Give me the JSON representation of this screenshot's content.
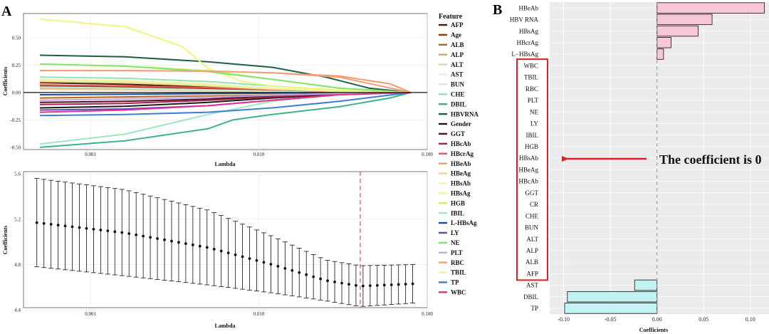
{
  "colors": {
    "panel_bg": "#ebebeb",
    "bar_pos": "#f9c6d8",
    "bar_neg": "#c2f3f3",
    "highlight": "#e02020",
    "cv_line": "#e05050"
  },
  "chart_data": [
    {
      "id": "A-top",
      "panel_label": "A",
      "type": "line",
      "xlabel": "Lambda",
      "ylabel": "Coefficients",
      "xscale": "log",
      "xlim": [
        0.0004,
        0.1
      ],
      "ylim": [
        -0.52,
        0.72
      ],
      "xticks": [
        0.001,
        0.01,
        0.1
      ],
      "xtick_labels": [
        "0.001",
        "0.010",
        "0.100"
      ],
      "yticks": [
        -0.5,
        -0.25,
        0,
        0.25,
        0.5
      ],
      "ytick_labels": [
        "-0.50",
        "-0.25",
        "0.00",
        "0.25",
        "0.50"
      ],
      "grid": true,
      "legend_title": "Feature",
      "legend_position": "right",
      "lambda_max": 0.1,
      "series": [
        {
          "name": "AFP",
          "color": "#4a1a08",
          "x": [
            0.0005,
            0.0016,
            0.005,
            0.012,
            0.03,
            0.1
          ],
          "y": [
            0.09,
            0.075,
            0.05,
            0.03,
            0.01,
            0
          ]
        },
        {
          "name": "Age",
          "color": "#8b3a0f",
          "x": [
            0.0005,
            0.0016,
            0.005,
            0.012,
            0.03,
            0.1
          ],
          "y": [
            0.06,
            0.05,
            0.035,
            0.02,
            0.005,
            0
          ]
        },
        {
          "name": "ALB",
          "color": "#b5651d",
          "x": [
            0.0005,
            0.0016,
            0.005,
            0.012,
            0.03,
            0.1
          ],
          "y": [
            -0.05,
            -0.04,
            -0.03,
            -0.015,
            -0.005,
            0
          ]
        },
        {
          "name": "ALP",
          "color": "#d2a56b",
          "x": [
            0.0005,
            0.0016,
            0.005,
            0.012,
            0.03,
            0.1
          ],
          "y": [
            0.04,
            0.035,
            0.02,
            0.01,
            0.003,
            0
          ]
        },
        {
          "name": "ALT",
          "color": "#e8d0a0",
          "x": [
            0.0005,
            0.0016,
            0.005,
            0.012,
            0.03,
            0.1
          ],
          "y": [
            0.03,
            0.025,
            0.015,
            0.008,
            0.002,
            0
          ]
        },
        {
          "name": "AST",
          "color": "#f2ecd6",
          "x": [
            0.0005,
            0.0016,
            0.005,
            0.012,
            0.03,
            0.1
          ],
          "y": [
            -0.03,
            -0.025,
            -0.02,
            -0.01,
            -0.003,
            0
          ]
        },
        {
          "name": "BUN",
          "color": "#c6eee0",
          "x": [
            0.0005,
            0.0016,
            0.005,
            0.012,
            0.03,
            0.1
          ],
          "y": [
            0.05,
            0.04,
            0.025,
            0.012,
            0.004,
            0
          ]
        },
        {
          "name": "CHE",
          "color": "#8fe3b8",
          "x": [
            0.0005,
            0.0016,
            0.005,
            0.012,
            0.03,
            0.1
          ],
          "y": [
            0.14,
            0.13,
            0.1,
            0.06,
            0.02,
            0
          ]
        },
        {
          "name": "DBIL",
          "color": "#3cb38a",
          "x": [
            0.0005,
            0.0016,
            0.005,
            0.007,
            0.012,
            0.03,
            0.06,
            0.1
          ],
          "y": [
            -0.5,
            -0.44,
            -0.33,
            -0.25,
            -0.2,
            -0.13,
            -0.05,
            0
          ]
        },
        {
          "name": "HBVRNA",
          "color": "#1e5e45",
          "x": [
            0.0005,
            0.0016,
            0.005,
            0.012,
            0.025,
            0.045,
            0.1
          ],
          "y": [
            0.34,
            0.325,
            0.28,
            0.23,
            0.14,
            0.04,
            0
          ]
        },
        {
          "name": "Gender",
          "color": "#1a1a1a",
          "x": [
            0.0005,
            0.0016,
            0.005,
            0.012,
            0.03,
            0.1
          ],
          "y": [
            -0.14,
            -0.125,
            -0.09,
            -0.05,
            -0.015,
            0
          ]
        },
        {
          "name": "GGT",
          "color": "#5c0a20",
          "x": [
            0.0005,
            0.0016,
            0.005,
            0.012,
            0.03,
            0.1
          ],
          "y": [
            -0.09,
            -0.08,
            -0.06,
            -0.03,
            -0.01,
            0
          ]
        },
        {
          "name": "HBcAb",
          "color": "#a0254a",
          "x": [
            0.0005,
            0.0016,
            0.005,
            0.012,
            0.03,
            0.1
          ],
          "y": [
            -0.11,
            -0.1,
            -0.07,
            -0.04,
            -0.012,
            0
          ]
        },
        {
          "name": "HBcrAg",
          "color": "#e05a5a",
          "x": [
            0.0005,
            0.0016,
            0.005,
            0.012,
            0.03,
            0.1
          ],
          "y": [
            0.07,
            0.06,
            0.045,
            0.025,
            0.008,
            0
          ]
        },
        {
          "name": "HBeAb",
          "color": "#f09a6a",
          "x": [
            0.0005,
            0.0016,
            0.005,
            0.012,
            0.03,
            0.06,
            0.1
          ],
          "y": [
            0.2,
            0.2,
            0.195,
            0.18,
            0.15,
            0.08,
            0
          ]
        },
        {
          "name": "HBeAg",
          "color": "#f5d28c",
          "x": [
            0.0005,
            0.0016,
            0.005,
            0.012,
            0.03,
            0.1
          ],
          "y": [
            0.1,
            0.09,
            0.06,
            0.03,
            0.01,
            0
          ]
        },
        {
          "name": "HBsAb",
          "color": "#f6f0b0",
          "x": [
            0.0005,
            0.0016,
            0.005,
            0.012,
            0.03,
            0.1
          ],
          "y": [
            0.12,
            0.11,
            0.08,
            0.04,
            0.012,
            0
          ]
        },
        {
          "name": "HBsAg",
          "color": "#f2f57a",
          "x": [
            0.0005,
            0.0016,
            0.0035,
            0.005,
            0.008,
            0.012,
            0.03,
            0.1
          ],
          "y": [
            0.67,
            0.6,
            0.42,
            0.22,
            0.1,
            0.06,
            0.02,
            0
          ]
        },
        {
          "name": "HGB",
          "color": "#c8f070",
          "x": [
            0.0005,
            0.0016,
            0.005,
            0.012,
            0.03,
            0.1
          ],
          "y": [
            0.26,
            0.24,
            0.2,
            0.12,
            0.04,
            0
          ]
        },
        {
          "name": "IBIL",
          "color": "#9fe6bd",
          "x": [
            0.0005,
            0.0016,
            0.005,
            0.012,
            0.03,
            0.1
          ],
          "y": [
            -0.47,
            -0.38,
            -0.2,
            -0.08,
            -0.02,
            0
          ]
        },
        {
          "name": "L-HBsAg",
          "color": "#1d4f9e",
          "x": [
            0.0005,
            0.0016,
            0.005,
            0.012,
            0.03,
            0.1
          ],
          "y": [
            -0.02,
            -0.015,
            -0.01,
            -0.005,
            -0.002,
            0
          ]
        },
        {
          "name": "LY",
          "color": "#5a4ac0",
          "x": [
            0.0005,
            0.0016,
            0.005,
            0.012,
            0.03,
            0.1
          ],
          "y": [
            -0.16,
            -0.15,
            -0.12,
            -0.07,
            -0.02,
            0
          ]
        },
        {
          "name": "NE",
          "color": "#7de86a",
          "x": [
            0.0005,
            0.0016,
            0.005,
            0.012,
            0.03,
            0.1
          ],
          "y": [
            0.26,
            0.24,
            0.19,
            0.12,
            0.04,
            0
          ]
        },
        {
          "name": "PLT",
          "color": "#c0a8e6",
          "x": [
            0.0005,
            0.0016,
            0.005,
            0.012,
            0.03,
            0.1
          ],
          "y": [
            -0.07,
            -0.06,
            -0.045,
            -0.025,
            -0.008,
            0
          ]
        },
        {
          "name": "RBC",
          "color": "#f2a078",
          "x": [
            0.0005,
            0.0016,
            0.005,
            0.012,
            0.03,
            0.1
          ],
          "y": [
            0.2,
            0.2,
            0.195,
            0.18,
            0.14,
            0
          ]
        },
        {
          "name": "TBIL",
          "color": "#e6f5a0",
          "x": [
            0.0005,
            0.0016,
            0.005,
            0.012,
            0.03,
            0.1
          ],
          "y": [
            0.11,
            0.1,
            0.07,
            0.035,
            0.01,
            0
          ]
        },
        {
          "name": "TP",
          "color": "#3a7fd5",
          "x": [
            0.0005,
            0.0016,
            0.005,
            0.012,
            0.03,
            0.1
          ],
          "y": [
            -0.21,
            -0.2,
            -0.18,
            -0.14,
            -0.08,
            0
          ]
        },
        {
          "name": "WBC",
          "color": "#e8308c",
          "x": [
            0.0005,
            0.0016,
            0.005,
            0.012,
            0.03,
            0.1
          ],
          "y": [
            -0.18,
            -0.16,
            -0.12,
            -0.07,
            -0.02,
            0
          ]
        }
      ]
    },
    {
      "id": "A-bottom",
      "type": "line",
      "xlabel": "Lambda",
      "ylabel": "Coefficients",
      "xscale": "log",
      "xlim": [
        0.0004,
        0.1
      ],
      "ylim": [
        4.42,
        5.62
      ],
      "xticks": [
        0.001,
        0.01,
        0.1
      ],
      "xtick_labels": [
        "0.001",
        "0.010",
        "0.100"
      ],
      "yticks": [
        4.4,
        4.8,
        5.2,
        5.6
      ],
      "ytick_labels": [
        "4.4",
        "4.8",
        "5.2",
        "5.6"
      ],
      "grid": true,
      "errorbars": true,
      "lambda_min": 0.00048,
      "lambda_max": 0.082,
      "n_points": 54,
      "selected_lambda": 0.04,
      "mean_control_points": {
        "x": [
          0.00048,
          0.0016,
          0.005,
          0.012,
          0.025,
          0.04,
          0.082
        ],
        "y": [
          5.17,
          5.08,
          4.95,
          4.8,
          4.66,
          4.61,
          4.63
        ]
      },
      "err_control_points": {
        "x": [
          0.00048,
          0.0016,
          0.005,
          0.012,
          0.025,
          0.04,
          0.082
        ],
        "y": [
          0.39,
          0.38,
          0.33,
          0.25,
          0.18,
          0.18,
          0.17
        ]
      }
    },
    {
      "id": "B",
      "panel_label": "B",
      "type": "bar",
      "orientation": "horizontal",
      "xlabel": "Coefficients",
      "ylabel": "",
      "xlim": [
        -0.115,
        0.12
      ],
      "xticks": [
        -0.1,
        -0.05,
        0,
        0.05,
        0.1
      ],
      "xtick_labels": [
        "-0.10",
        "-0.05",
        "0.00",
        "0.05",
        "0.10"
      ],
      "grid": true,
      "categories": [
        "HBeAb",
        "HBV RNA",
        "HBsAg",
        "HBcrAg",
        "L−HBsAg",
        "WBC",
        "TBIL",
        "RBC",
        "PLT",
        "NE",
        "LY",
        "IBIL",
        "HGB",
        "HBsAb",
        "HBeAg",
        "HBcAb",
        "GGT",
        "CR",
        "CHE",
        "BUN",
        "ALT",
        "ALP",
        "ALB",
        "AFP",
        "AST",
        "DBIL",
        "TP"
      ],
      "values": [
        0.115,
        0.059,
        0.044,
        0.015,
        0.007,
        0,
        0,
        0,
        0,
        0,
        0,
        0,
        0,
        0,
        0,
        0,
        0,
        0,
        0,
        0,
        0,
        0,
        0,
        0,
        -0.024,
        -0.096,
        -0.099
      ],
      "zero_group_first": 5,
      "zero_group_last": 23,
      "annotation": "The coefficient is 0"
    }
  ]
}
